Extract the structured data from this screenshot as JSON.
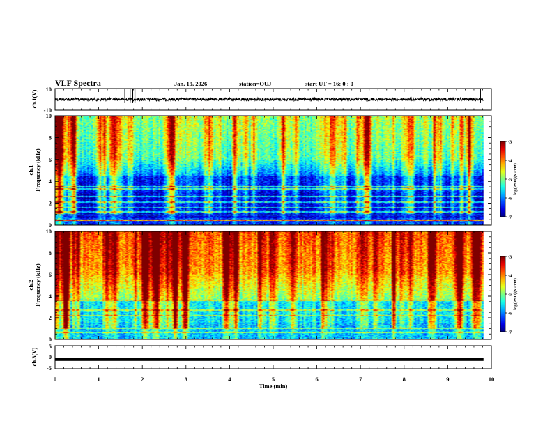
{
  "header": {
    "title": "VLF Spectra",
    "date": "Jan. 19, 2026",
    "station": "station=OUJ",
    "start_ut": "start  UT =   16: 0  : 0"
  },
  "chart_data": [
    {
      "type": "line",
      "name": "channel-1-waveform",
      "ylabel": "ch.1(V)",
      "ylim": [
        -10,
        10
      ],
      "yticks": [
        "10",
        "-10"
      ],
      "xlim": [
        0,
        10
      ],
      "baseline": 0,
      "spike_times_min": [
        1.6,
        1.72,
        1.78,
        1.83,
        9.75
      ]
    },
    {
      "type": "heatmap",
      "name": "channel-1-spectrogram",
      "ylabel_line1": "ch.1",
      "ylabel_line2": "Frequency (kHz)",
      "ylim": [
        0,
        10
      ],
      "yticks": [
        "0",
        "2",
        "4",
        "6",
        "8",
        "10"
      ],
      "xlim": [
        0,
        10
      ],
      "data_extent_min": 9.82,
      "colorbar": {
        "label": "log(PSD)(V²/Hz)",
        "ticks": [
          "-3",
          "-4",
          "-5",
          "-6",
          "-7"
        ],
        "range": [
          -7,
          -3
        ]
      }
    },
    {
      "type": "heatmap",
      "name": "channel-2-spectrogram",
      "ylabel_line1": "ch.2",
      "ylabel_line2": "Frequency (kHz)",
      "ylim": [
        0,
        10
      ],
      "yticks": [
        "0",
        "2",
        "4",
        "6",
        "8",
        "10"
      ],
      "xlim": [
        0,
        10
      ],
      "data_extent_min": 9.82,
      "colorbar": {
        "label": "log(PSD)(V²/Hz)",
        "ticks": [
          "-3",
          "-4",
          "-5",
          "-6",
          "-7"
        ],
        "range": [
          -7,
          -3
        ]
      }
    },
    {
      "type": "line",
      "name": "channel-3-waveform",
      "ylabel": "ch.3(V)",
      "ylim": [
        -5,
        5
      ],
      "yticks": [
        "5",
        "0",
        "-5"
      ],
      "xlim": [
        0,
        10
      ],
      "baseline": -1
    }
  ],
  "xaxis": {
    "label": "Time (min)",
    "ticks": [
      "0",
      "1",
      "2",
      "3",
      "4",
      "5",
      "6",
      "7",
      "8",
      "9",
      "10"
    ]
  }
}
